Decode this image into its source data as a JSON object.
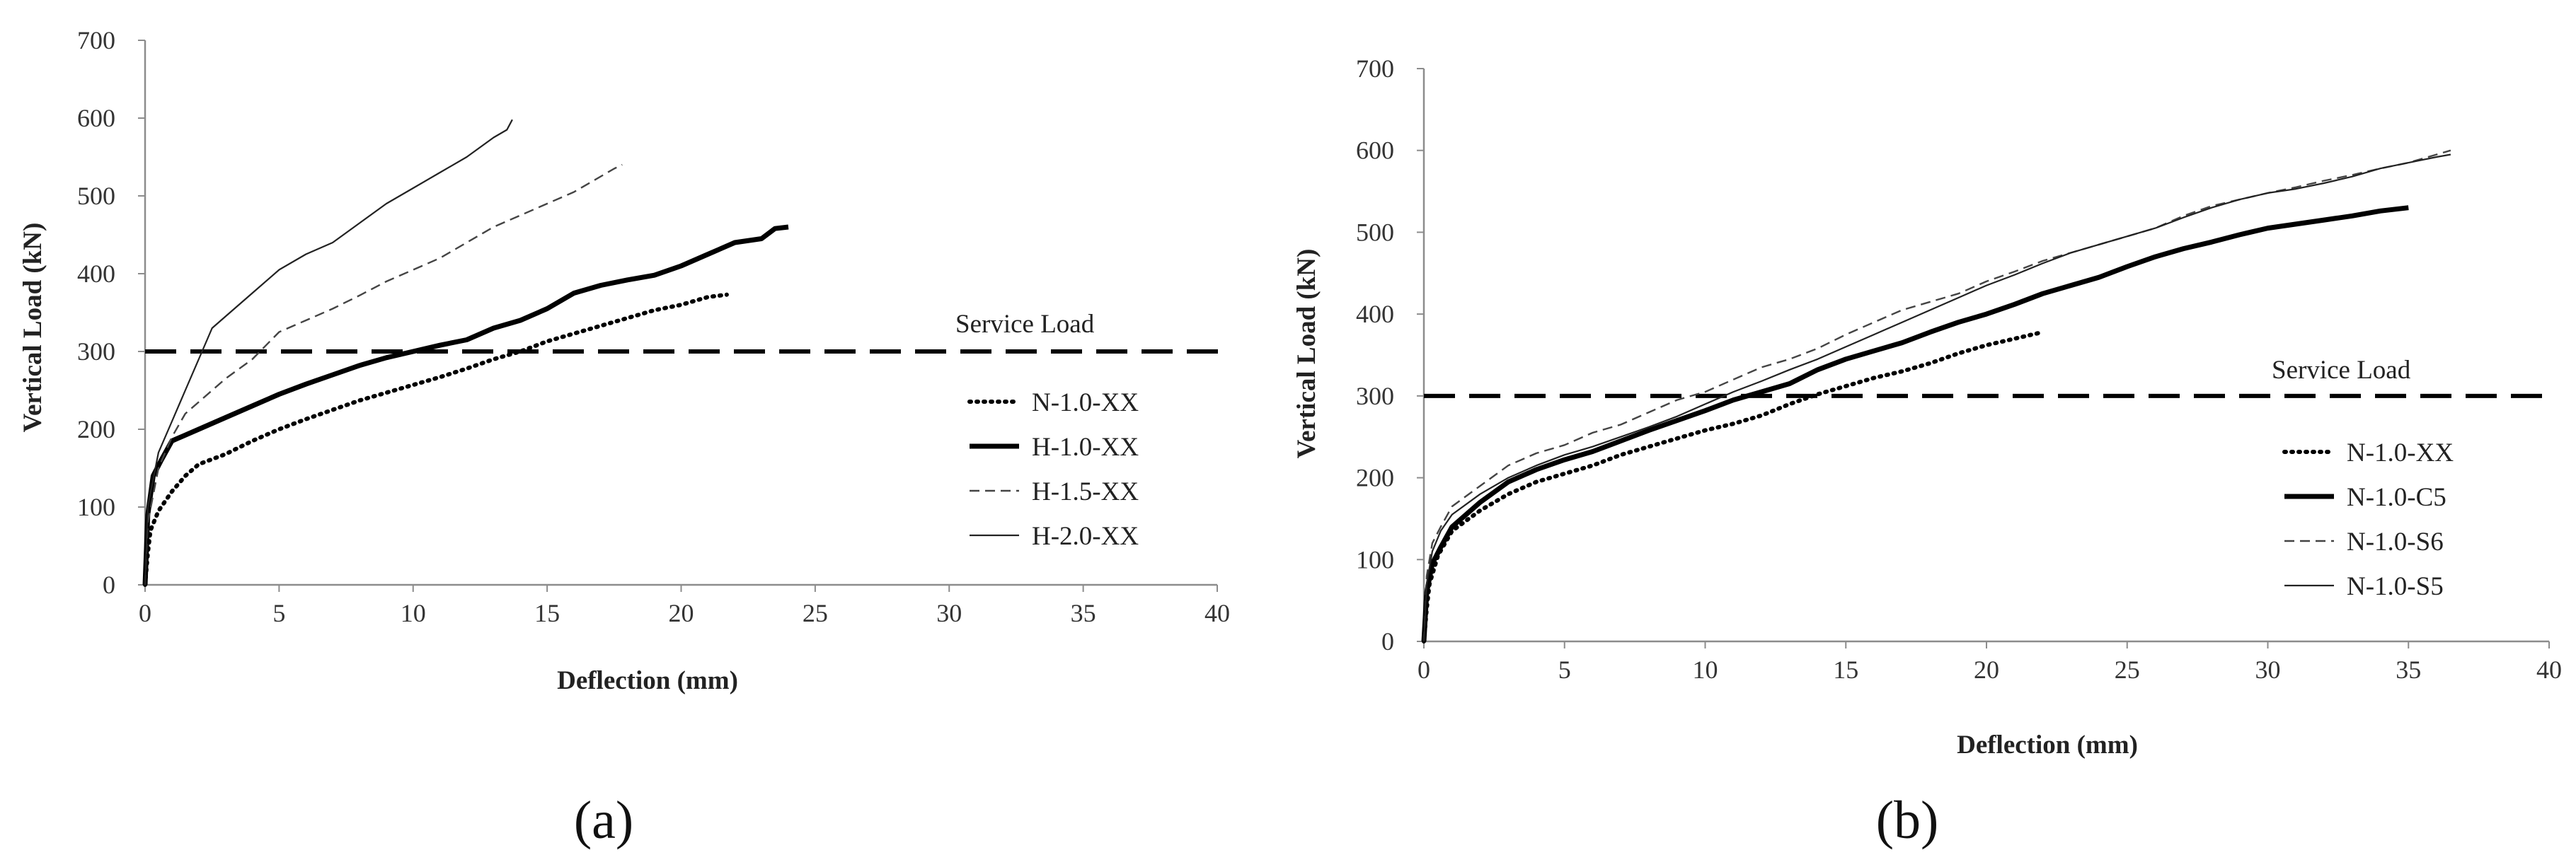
{
  "chart_data": [
    {
      "type": "line",
      "panel_label": "(a)",
      "xlabel": "Deflection (mm)",
      "ylabel": "Vertical Load (kN)",
      "xlim": [
        0,
        40
      ],
      "ylim": [
        0,
        700
      ],
      "xticks": [
        0,
        5,
        10,
        15,
        20,
        25,
        30,
        35,
        40
      ],
      "yticks": [
        0,
        100,
        200,
        300,
        400,
        500,
        600,
        700
      ],
      "grid": false,
      "legend_position": "right",
      "reference_line": {
        "label": "Service Load",
        "y": 300
      },
      "series": [
        {
          "name": "N-1.0-XX",
          "style": "dotted",
          "color": "#000000",
          "points": [
            [
              0,
              0
            ],
            [
              0.1,
              40
            ],
            [
              0.2,
              70
            ],
            [
              0.5,
              95
            ],
            [
              1,
              120
            ],
            [
              1.5,
              140
            ],
            [
              2,
              155
            ],
            [
              3,
              168
            ],
            [
              4,
              185
            ],
            [
              5,
              200
            ],
            [
              6,
              213
            ],
            [
              7,
              225
            ],
            [
              8,
              237
            ],
            [
              9,
              247
            ],
            [
              10,
              257
            ],
            [
              11,
              267
            ],
            [
              12,
              278
            ],
            [
              13,
              290
            ],
            [
              14,
              300
            ],
            [
              15,
              313
            ],
            [
              16,
              323
            ],
            [
              17,
              333
            ],
            [
              18,
              343
            ],
            [
              19,
              353
            ],
            [
              20,
              360
            ],
            [
              21,
              370
            ],
            [
              21.7,
              373
            ]
          ]
        },
        {
          "name": "H-1.0-XX",
          "style": "solid-thick",
          "color": "#000000",
          "points": [
            [
              0,
              0
            ],
            [
              0.1,
              90
            ],
            [
              0.3,
              140
            ],
            [
              0.6,
              160
            ],
            [
              1,
              185
            ],
            [
              2,
              200
            ],
            [
              3,
              215
            ],
            [
              4,
              230
            ],
            [
              5,
              245
            ],
            [
              6,
              258
            ],
            [
              7,
              270
            ],
            [
              8,
              282
            ],
            [
              9,
              292
            ],
            [
              10,
              300
            ],
            [
              11,
              308
            ],
            [
              12,
              315
            ],
            [
              13,
              330
            ],
            [
              14,
              340
            ],
            [
              15,
              355
            ],
            [
              16,
              375
            ],
            [
              17,
              385
            ],
            [
              18,
              392
            ],
            [
              19,
              398
            ],
            [
              20,
              410
            ],
            [
              21,
              425
            ],
            [
              22,
              440
            ],
            [
              23,
              445
            ],
            [
              23.5,
              458
            ],
            [
              24,
              460
            ]
          ]
        },
        {
          "name": "H-1.5-XX",
          "style": "dashed",
          "color": "#444444",
          "points": [
            [
              0,
              0
            ],
            [
              0.1,
              80
            ],
            [
              0.5,
              150
            ],
            [
              1,
              190
            ],
            [
              1.5,
              220
            ],
            [
              2,
              235
            ],
            [
              3,
              265
            ],
            [
              4,
              290
            ],
            [
              5,
              325
            ],
            [
              6,
              340
            ],
            [
              7,
              355
            ],
            [
              8,
              372
            ],
            [
              9,
              390
            ],
            [
              10,
              405
            ],
            [
              11,
              420
            ],
            [
              12,
              440
            ],
            [
              13,
              460
            ],
            [
              14,
              475
            ],
            [
              15,
              490
            ],
            [
              16,
              505
            ],
            [
              17,
              525
            ],
            [
              17.5,
              535
            ],
            [
              17.8,
              540
            ]
          ]
        },
        {
          "name": "H-2.0-XX",
          "style": "solid-thin",
          "color": "#222222",
          "points": [
            [
              0,
              0
            ],
            [
              0.1,
              100
            ],
            [
              0.5,
              170
            ],
            [
              1,
              210
            ],
            [
              1.5,
              250
            ],
            [
              2,
              290
            ],
            [
              2.5,
              330
            ],
            [
              3,
              345
            ],
            [
              4,
              375
            ],
            [
              5,
              405
            ],
            [
              6,
              425
            ],
            [
              7,
              440
            ],
            [
              8,
              465
            ],
            [
              9,
              490
            ],
            [
              10,
              510
            ],
            [
              11,
              530
            ],
            [
              12,
              550
            ],
            [
              13,
              575
            ],
            [
              13.5,
              585
            ],
            [
              13.7,
              598
            ]
          ]
        }
      ]
    },
    {
      "type": "line",
      "panel_label": "(b)",
      "xlabel": "Deflection (mm)",
      "ylabel": "Vertical Load (kN)",
      "xlim": [
        0,
        40
      ],
      "ylim": [
        0,
        700
      ],
      "xticks": [
        0,
        5,
        10,
        15,
        20,
        25,
        30,
        35,
        40
      ],
      "yticks": [
        0,
        100,
        200,
        300,
        400,
        500,
        600,
        700
      ],
      "grid": false,
      "legend_position": "right",
      "reference_line": {
        "label": "Service Load",
        "y": 300
      },
      "series": [
        {
          "name": "N-1.0-XX",
          "style": "dotted",
          "color": "#000000",
          "points": [
            [
              0,
              0
            ],
            [
              0.1,
              40
            ],
            [
              0.2,
              70
            ],
            [
              0.5,
              105
            ],
            [
              1,
              135
            ],
            [
              2,
              160
            ],
            [
              3,
              180
            ],
            [
              4,
              195
            ],
            [
              5,
              205
            ],
            [
              6,
              215
            ],
            [
              7,
              228
            ],
            [
              8,
              238
            ],
            [
              9,
              248
            ],
            [
              10,
              258
            ],
            [
              11,
              266
            ],
            [
              12,
              276
            ],
            [
              13,
              290
            ],
            [
              14,
              302
            ],
            [
              15,
              312
            ],
            [
              16,
              322
            ],
            [
              17,
              330
            ],
            [
              18,
              340
            ],
            [
              19,
              352
            ],
            [
              20,
              362
            ],
            [
              21,
              370
            ],
            [
              22,
              378
            ]
          ]
        },
        {
          "name": "N-1.0-C5",
          "style": "solid-thick",
          "color": "#000000",
          "points": [
            [
              0,
              0
            ],
            [
              0.1,
              60
            ],
            [
              0.3,
              95
            ],
            [
              0.6,
              115
            ],
            [
              1,
              140
            ],
            [
              2,
              170
            ],
            [
              3,
              195
            ],
            [
              4,
              210
            ],
            [
              5,
              222
            ],
            [
              6,
              232
            ],
            [
              7,
              245
            ],
            [
              8,
              258
            ],
            [
              9,
              270
            ],
            [
              10,
              282
            ],
            [
              11,
              295
            ],
            [
              12,
              305
            ],
            [
              13,
              315
            ],
            [
              14,
              332
            ],
            [
              15,
              345
            ],
            [
              16,
              355
            ],
            [
              17,
              365
            ],
            [
              18,
              378
            ],
            [
              19,
              390
            ],
            [
              20,
              400
            ],
            [
              21,
              412
            ],
            [
              22,
              425
            ],
            [
              23,
              435
            ],
            [
              24,
              445
            ],
            [
              25,
              458
            ],
            [
              26,
              470
            ],
            [
              27,
              480
            ],
            [
              28,
              488
            ],
            [
              29,
              497
            ],
            [
              30,
              505
            ],
            [
              31,
              510
            ],
            [
              32,
              515
            ],
            [
              33,
              520
            ],
            [
              34,
              526
            ],
            [
              35,
              530
            ]
          ]
        },
        {
          "name": "N-1.0-S6",
          "style": "dashed",
          "color": "#444444",
          "points": [
            [
              0,
              0
            ],
            [
              0.1,
              80
            ],
            [
              0.3,
              120
            ],
            [
              0.6,
              140
            ],
            [
              1,
              165
            ],
            [
              2,
              190
            ],
            [
              3,
              215
            ],
            [
              4,
              230
            ],
            [
              5,
              240
            ],
            [
              6,
              255
            ],
            [
              7,
              265
            ],
            [
              8,
              280
            ],
            [
              9,
              295
            ],
            [
              10,
              305
            ],
            [
              11,
              320
            ],
            [
              12,
              335
            ],
            [
              13,
              345
            ],
            [
              14,
              358
            ],
            [
              15,
              375
            ],
            [
              16,
              390
            ],
            [
              17,
              405
            ],
            [
              18,
              415
            ],
            [
              19,
              425
            ],
            [
              20,
              440
            ],
            [
              21,
              452
            ],
            [
              22,
              465
            ],
            [
              23,
              475
            ],
            [
              24,
              485
            ],
            [
              25,
              495
            ],
            [
              26,
              505
            ],
            [
              27,
              520
            ],
            [
              28,
              532
            ],
            [
              29,
              540
            ],
            [
              30,
              548
            ],
            [
              31,
              555
            ],
            [
              32,
              563
            ],
            [
              33,
              570
            ],
            [
              34,
              578
            ],
            [
              35,
              585
            ],
            [
              36,
              595
            ],
            [
              36.5,
              600
            ]
          ]
        },
        {
          "name": "N-1.0-S5",
          "style": "solid-thin",
          "color": "#222222",
          "points": [
            [
              0,
              0
            ],
            [
              0.1,
              70
            ],
            [
              0.3,
              110
            ],
            [
              0.6,
              135
            ],
            [
              1,
              155
            ],
            [
              2,
              180
            ],
            [
              3,
              200
            ],
            [
              4,
              215
            ],
            [
              5,
              228
            ],
            [
              6,
              238
            ],
            [
              7,
              250
            ],
            [
              8,
              262
            ],
            [
              9,
              275
            ],
            [
              10,
              290
            ],
            [
              11,
              305
            ],
            [
              12,
              318
            ],
            [
              13,
              332
            ],
            [
              14,
              345
            ],
            [
              15,
              360
            ],
            [
              16,
              375
            ],
            [
              17,
              390
            ],
            [
              18,
              405
            ],
            [
              19,
              420
            ],
            [
              20,
              435
            ],
            [
              21,
              448
            ],
            [
              22,
              462
            ],
            [
              23,
              475
            ],
            [
              24,
              485
            ],
            [
              25,
              495
            ],
            [
              26,
              505
            ],
            [
              27,
              518
            ],
            [
              28,
              530
            ],
            [
              29,
              540
            ],
            [
              30,
              548
            ],
            [
              31,
              553
            ],
            [
              32,
              560
            ],
            [
              33,
              568
            ],
            [
              34,
              578
            ],
            [
              35,
              585
            ],
            [
              36,
              592
            ],
            [
              36.5,
              595
            ]
          ]
        }
      ]
    }
  ]
}
